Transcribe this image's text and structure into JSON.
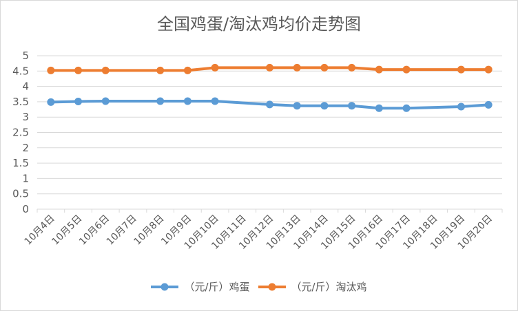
{
  "chart_data": {
    "type": "line",
    "title": "全国鸡蛋/淘汰鸡均价走势图",
    "xlabel": "",
    "ylabel": "",
    "ylim": [
      0,
      5
    ],
    "yticks": [
      "0",
      "0.5",
      "1",
      "1.5",
      "2",
      "2.5",
      "3",
      "3.5",
      "4",
      "4.5",
      "5"
    ],
    "grid": true,
    "legend_position": "bottom",
    "categories": [
      "10月4日",
      "10月5日",
      "10月6日",
      "10月7日",
      "10月8日",
      "10月9日",
      "10月10日",
      "10月11日",
      "10月12日",
      "10月13日",
      "10月14日",
      "10月15日",
      "10月16日",
      "10月17日",
      "10月18日",
      "10月19日",
      "10月20日"
    ],
    "series": [
      {
        "name": "（元/斤）鸡蛋",
        "color": "#5B9BD5",
        "values": [
          3.49,
          3.51,
          3.52,
          null,
          3.52,
          3.52,
          3.52,
          null,
          3.41,
          3.37,
          3.37,
          3.37,
          3.29,
          3.29,
          null,
          3.34,
          3.4
        ]
      },
      {
        "name": "（元/斤）淘汰鸡",
        "color": "#ED7D31",
        "values": [
          4.52,
          4.52,
          4.52,
          null,
          4.52,
          4.52,
          4.61,
          null,
          4.61,
          4.61,
          4.61,
          4.61,
          4.55,
          4.55,
          null,
          4.55,
          4.55
        ]
      }
    ]
  }
}
